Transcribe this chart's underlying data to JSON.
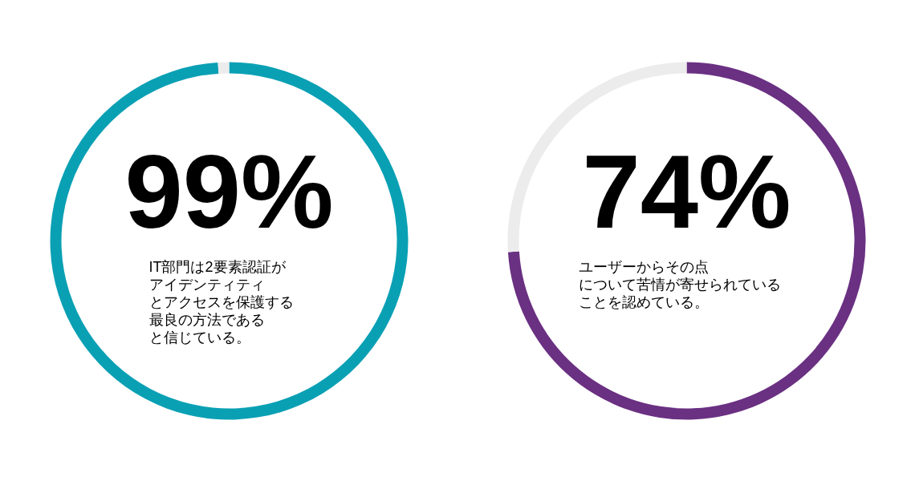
{
  "chart_data": [
    {
      "type": "donut",
      "categories": [
        null,
        null
      ],
      "values": [
        99,
        1
      ],
      "colors": [
        "#0aa0b4",
        "#ececec"
      ],
      "annotations": [
        "99%",
        "IT部門は2要素認証が",
        "アイデンティティ",
        "とアクセスを保護する",
        "最良の方法である",
        "と信じている。"
      ]
    },
    {
      "type": "donut",
      "categories": [
        null,
        null
      ],
      "values": [
        74,
        26
      ],
      "colors": [
        "#6a3082",
        "#ececec"
      ],
      "annotations": [
        "74%",
        "ユーザーからその点",
        "について苦情が寄せられている",
        "ことを認めている。"
      ]
    }
  ]
}
